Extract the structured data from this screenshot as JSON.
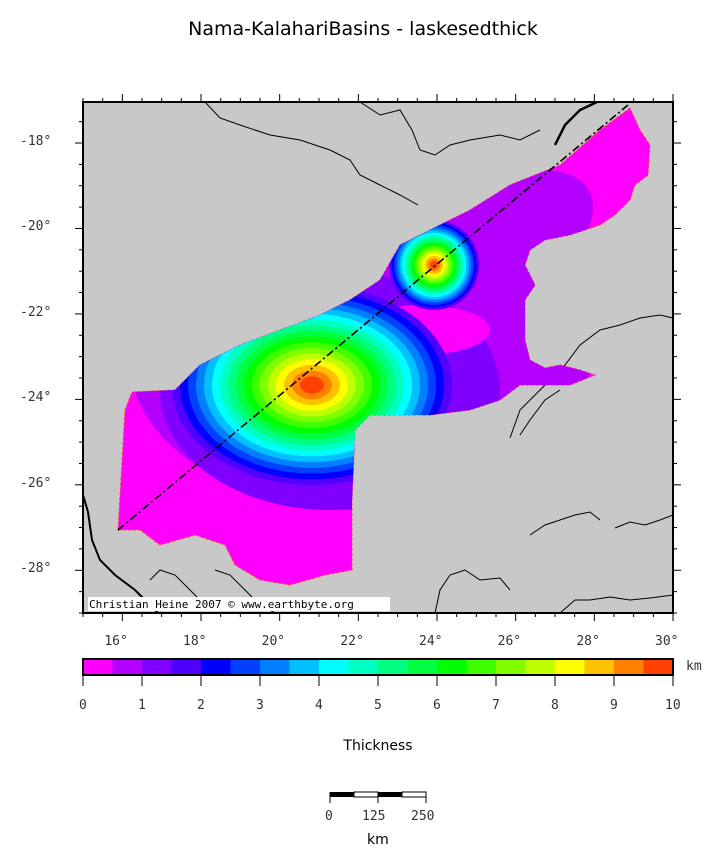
{
  "title": "Nama-KalahariBasins - laskesedthick",
  "map": {
    "lon_labels": [
      "16°",
      "18°",
      "20°",
      "22°",
      "24°",
      "26°",
      "28°",
      "30°"
    ],
    "lat_labels": [
      "-18°",
      "-20°",
      "-22°",
      "-24°",
      "-26°",
      "-28°"
    ],
    "credit": "Christian Heine 2007 © www.earthbyte.org",
    "land_color": "#c8c8c8"
  },
  "colorbar": {
    "label": "Thickness",
    "unit": "km",
    "range": [
      0,
      10
    ],
    "tick_labels": [
      "0",
      "1",
      "2",
      "3",
      "4",
      "5",
      "6",
      "7",
      "8",
      "9",
      "10"
    ],
    "colors": [
      "#ff00ff",
      "#b400ff",
      "#8000ff",
      "#5000ff",
      "#0000ff",
      "#0040ff",
      "#0080ff",
      "#00c0ff",
      "#00ffff",
      "#00ffc0",
      "#00ff80",
      "#00ff40",
      "#00ff00",
      "#40ff00",
      "#80ff00",
      "#c0ff00",
      "#ffff00",
      "#ffc000",
      "#ff8000",
      "#ff4000"
    ]
  },
  "scalebar": {
    "labels": [
      "0",
      "125",
      "250"
    ],
    "unit": "km"
  }
}
